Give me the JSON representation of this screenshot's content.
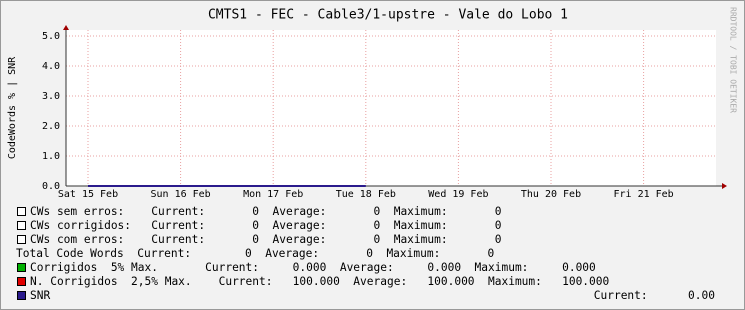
{
  "chart_data": {
    "type": "line",
    "title": "CMTS1 - FEC - Cable3/1-upstre - Vale do Lobo 1",
    "y_label": "CodeWords % | SNR",
    "watermark": "RRDTOOL / TOBI OETIKER",
    "categories": [
      "Sat 15 Feb",
      "Sun 16 Feb",
      "Mon 17 Feb",
      "Tue 18 Feb",
      "Wed 19 Feb",
      "Thu 20 Feb",
      "Fri 21 Feb"
    ],
    "series": [
      {
        "name": "SNR",
        "color": "#2a1a8c",
        "values": [
          0,
          0,
          0,
          0,
          null,
          null,
          null
        ]
      }
    ],
    "ylim": [
      0,
      5
    ],
    "yticks": [
      {
        "value": 0,
        "label": "0.0"
      },
      {
        "value": 1,
        "label": "1.0"
      },
      {
        "value": 2,
        "label": "2.0"
      },
      {
        "value": 3,
        "label": "3.0"
      },
      {
        "value": 4,
        "label": "4.0"
      },
      {
        "value": 5,
        "label": "5.0"
      }
    ],
    "grid": true,
    "grid_color": "#e8a0a0",
    "legend": {
      "rows": [
        {
          "swatch": "none",
          "text": "CWs sem erros:    Current:       0  Average:       0  Maximum:       0"
        },
        {
          "swatch": "none",
          "text": "CWs corrigidos:   Current:       0  Average:       0  Maximum:       0"
        },
        {
          "swatch": "none",
          "text": "CWs com erros:    Current:       0  Average:       0  Maximum:       0"
        },
        {
          "swatch": null,
          "text": "Total Code Words  Current:        0  Average:       0  Maximum:       0"
        },
        {
          "swatch": "#00b000",
          "text": "Corrigidos  5% Max.       Current:     0.000  Average:     0.000  Maximum:     0.000"
        },
        {
          "swatch": "#e00000",
          "text": "N. Corrigidos  2,5% Max.    Current:   100.000  Average:   100.000  Maximum:   100.000"
        }
      ],
      "snr_current": "Current:      0.00"
    }
  }
}
